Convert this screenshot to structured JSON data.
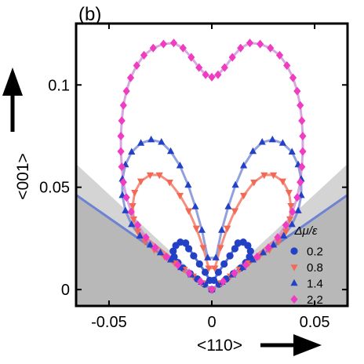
{
  "panel_label": "(b)",
  "chart_data": {
    "type": "scatter",
    "title": "",
    "xlabel": "<110>",
    "ylabel": "<001>",
    "xlim": [
      -0.066,
      0.066
    ],
    "ylim": [
      -0.008,
      0.13
    ],
    "x_ticks": [
      -0.05,
      0,
      0.05
    ],
    "x_tick_labels": [
      "-0.05",
      "0",
      "0.05"
    ],
    "y_ticks": [
      0,
      0.05,
      0.1
    ],
    "y_tick_labels": [
      "0",
      "0.05",
      "0.1"
    ],
    "legend": {
      "title": "Δμ/ε",
      "position": "bottom-right",
      "entries": [
        "0.2",
        "0.8",
        "1.4",
        "2.2"
      ]
    },
    "regions": [
      {
        "name": "light-gray-wedge",
        "boundary_slope": 0.93,
        "color": "#d4d4d4"
      },
      {
        "name": "dark-gray-wedge",
        "boundary_slope": 0.7,
        "color": "#b8b8b8",
        "boundary_line_color": "#6e82d2"
      }
    ],
    "series": [
      {
        "name": "0.2",
        "marker": "circle",
        "color": "#2341c6",
        "line_color": "#2341c6",
        "points": [
          [
            0.0,
            0.0
          ],
          [
            0.0035,
            0.0026
          ],
          [
            0.007,
            0.0052
          ],
          [
            0.0105,
            0.0078
          ],
          [
            0.014,
            0.0105
          ],
          [
            0.0165,
            0.0132
          ],
          [
            0.0183,
            0.016
          ],
          [
            0.0188,
            0.0188
          ],
          [
            0.0175,
            0.0215
          ],
          [
            0.0153,
            0.0232
          ],
          [
            0.0127,
            0.0228
          ],
          [
            0.0112,
            0.02
          ],
          [
            0.0088,
            0.0165
          ],
          [
            0.006,
            0.0125
          ],
          [
            0.0032,
            0.0085
          ],
          [
            0.001,
            0.0045
          ],
          [
            -0.0035,
            0.0026
          ],
          [
            -0.007,
            0.0052
          ],
          [
            -0.0105,
            0.0078
          ],
          [
            -0.014,
            0.0105
          ],
          [
            -0.0165,
            0.0132
          ],
          [
            -0.0183,
            0.016
          ],
          [
            -0.0188,
            0.0188
          ],
          [
            -0.0175,
            0.0215
          ],
          [
            -0.0153,
            0.0232
          ],
          [
            -0.0127,
            0.0228
          ],
          [
            -0.0112,
            0.02
          ],
          [
            -0.0088,
            0.0165
          ],
          [
            -0.006,
            0.0125
          ],
          [
            -0.0032,
            0.0085
          ],
          [
            -0.001,
            0.0045
          ]
        ]
      },
      {
        "name": "0.8",
        "marker": "triangle-down",
        "color": "#f26a55",
        "line_color": "#f26a55",
        "points": [
          [
            0.0,
            0.0
          ],
          [
            0.0045,
            0.0033
          ],
          [
            0.009,
            0.0066
          ],
          [
            0.0135,
            0.0099
          ],
          [
            0.018,
            0.013
          ],
          [
            0.023,
            0.0162
          ],
          [
            0.028,
            0.0195
          ],
          [
            0.0325,
            0.0235
          ],
          [
            0.036,
            0.0285
          ],
          [
            0.038,
            0.0345
          ],
          [
            0.0385,
            0.041
          ],
          [
            0.0375,
            0.0475
          ],
          [
            0.0345,
            0.053
          ],
          [
            0.03,
            0.056
          ],
          [
            0.0255,
            0.056
          ],
          [
            0.0205,
            0.0525
          ],
          [
            0.0155,
            0.046
          ],
          [
            0.0112,
            0.0385
          ],
          [
            0.0075,
            0.03
          ],
          [
            0.0042,
            0.0205
          ],
          [
            0.0015,
            0.0105
          ],
          [
            -0.0045,
            0.0033
          ],
          [
            -0.009,
            0.0066
          ],
          [
            -0.0135,
            0.0099
          ],
          [
            -0.018,
            0.013
          ],
          [
            -0.023,
            0.0162
          ],
          [
            -0.028,
            0.0195
          ],
          [
            -0.0325,
            0.0235
          ],
          [
            -0.036,
            0.0285
          ],
          [
            -0.038,
            0.0345
          ],
          [
            -0.0385,
            0.041
          ],
          [
            -0.0375,
            0.0475
          ],
          [
            -0.0345,
            0.053
          ],
          [
            -0.03,
            0.056
          ],
          [
            -0.0255,
            0.056
          ],
          [
            -0.0205,
            0.0525
          ],
          [
            -0.0155,
            0.046
          ],
          [
            -0.0112,
            0.0385
          ],
          [
            -0.0075,
            0.03
          ],
          [
            -0.0042,
            0.0205
          ],
          [
            -0.0015,
            0.0105
          ]
        ]
      },
      {
        "name": "1.4",
        "marker": "triangle-up",
        "color": "#2341c6",
        "line_color": "#6e82d2",
        "points": [
          [
            0.0,
            0.0
          ],
          [
            0.005,
            0.0036
          ],
          [
            0.01,
            0.0072
          ],
          [
            0.015,
            0.0108
          ],
          [
            0.02,
            0.0145
          ],
          [
            0.025,
            0.018
          ],
          [
            0.03,
            0.0218
          ],
          [
            0.035,
            0.0262
          ],
          [
            0.039,
            0.0318
          ],
          [
            0.042,
            0.0385
          ],
          [
            0.0435,
            0.046
          ],
          [
            0.0435,
            0.054
          ],
          [
            0.042,
            0.061
          ],
          [
            0.039,
            0.0672
          ],
          [
            0.0345,
            0.0715
          ],
          [
            0.0295,
            0.0732
          ],
          [
            0.0245,
            0.072
          ],
          [
            0.02,
            0.0675
          ],
          [
            0.0155,
            0.0605
          ],
          [
            0.0115,
            0.051
          ],
          [
            0.008,
            0.0405
          ],
          [
            0.0048,
            0.029
          ],
          [
            0.002,
            0.0155
          ],
          [
            -0.005,
            0.0036
          ],
          [
            -0.01,
            0.0072
          ],
          [
            -0.015,
            0.0108
          ],
          [
            -0.02,
            0.0145
          ],
          [
            -0.025,
            0.018
          ],
          [
            -0.03,
            0.0218
          ],
          [
            -0.035,
            0.0262
          ],
          [
            -0.039,
            0.0318
          ],
          [
            -0.042,
            0.0385
          ],
          [
            -0.0435,
            0.046
          ],
          [
            -0.0435,
            0.054
          ],
          [
            -0.042,
            0.061
          ],
          [
            -0.039,
            0.0672
          ],
          [
            -0.0345,
            0.0715
          ],
          [
            -0.0295,
            0.0732
          ],
          [
            -0.0245,
            0.072
          ],
          [
            -0.02,
            0.0675
          ],
          [
            -0.0155,
            0.0605
          ],
          [
            -0.0115,
            0.051
          ],
          [
            -0.008,
            0.0405
          ],
          [
            -0.0048,
            0.029
          ],
          [
            -0.002,
            0.0155
          ]
        ]
      },
      {
        "name": "2.2",
        "marker": "diamond",
        "color": "#f03cc1",
        "line_color": "#c98ad8",
        "points": [
          [
            0.0,
            0.0
          ],
          [
            0.0055,
            0.004
          ],
          [
            0.011,
            0.008
          ],
          [
            0.0165,
            0.012
          ],
          [
            0.022,
            0.016
          ],
          [
            0.0275,
            0.0205
          ],
          [
            0.032,
            0.0255
          ],
          [
            0.036,
            0.0315
          ],
          [
            0.0392,
            0.038
          ],
          [
            0.0415,
            0.045
          ],
          [
            0.043,
            0.0525
          ],
          [
            0.0438,
            0.06
          ],
          [
            0.0442,
            0.0675
          ],
          [
            0.0442,
            0.075
          ],
          [
            0.0438,
            0.0825
          ],
          [
            0.043,
            0.09
          ],
          [
            0.0415,
            0.097
          ],
          [
            0.0395,
            0.1035
          ],
          [
            0.0365,
            0.1095
          ],
          [
            0.033,
            0.1145
          ],
          [
            0.0285,
            0.118
          ],
          [
            0.0235,
            0.12
          ],
          [
            0.0185,
            0.1205
          ],
          [
            0.014,
            0.118
          ],
          [
            0.01,
            0.1135
          ],
          [
            0.0062,
            0.1085
          ],
          [
            0.003,
            0.105
          ],
          [
            0.0,
            0.1038
          ],
          [
            -0.0055,
            0.004
          ],
          [
            -0.011,
            0.008
          ],
          [
            -0.0165,
            0.012
          ],
          [
            -0.022,
            0.016
          ],
          [
            -0.0275,
            0.0205
          ],
          [
            -0.032,
            0.0255
          ],
          [
            -0.036,
            0.0315
          ],
          [
            -0.0392,
            0.038
          ],
          [
            -0.0415,
            0.045
          ],
          [
            -0.043,
            0.0525
          ],
          [
            -0.0438,
            0.06
          ],
          [
            -0.0442,
            0.0675
          ],
          [
            -0.0442,
            0.075
          ],
          [
            -0.0438,
            0.0825
          ],
          [
            -0.043,
            0.09
          ],
          [
            -0.0415,
            0.097
          ],
          [
            -0.0395,
            0.1035
          ],
          [
            -0.0365,
            0.1095
          ],
          [
            -0.033,
            0.1145
          ],
          [
            -0.0285,
            0.118
          ],
          [
            -0.0235,
            0.12
          ],
          [
            -0.0185,
            0.1205
          ],
          [
            -0.014,
            0.118
          ],
          [
            -0.01,
            0.1135
          ],
          [
            -0.0062,
            0.1085
          ],
          [
            -0.003,
            0.105
          ]
        ]
      }
    ]
  }
}
